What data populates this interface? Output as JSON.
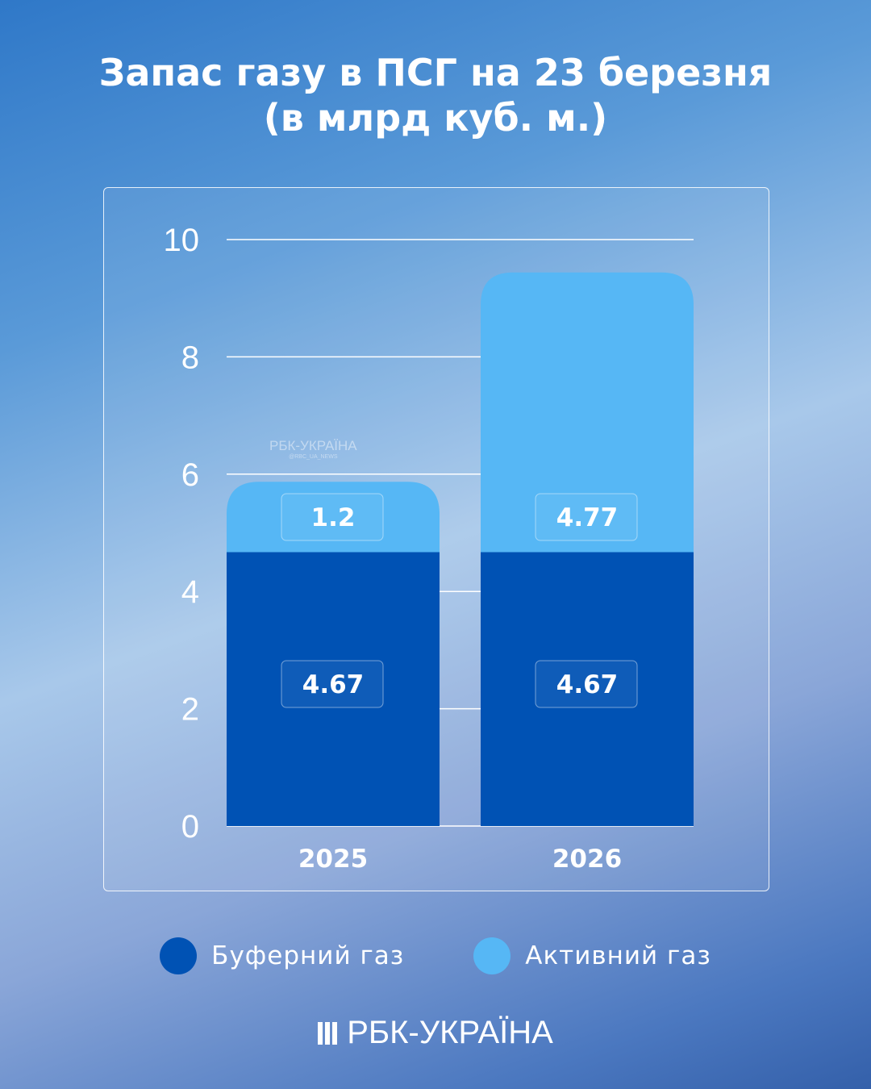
{
  "chart_data": {
    "type": "bar",
    "stacked": true,
    "title": "Запас газу в ПСГ на 23 березня",
    "subtitle": "(в млрд куб. м.)",
    "categories": [
      "2025",
      "2026"
    ],
    "series": [
      {
        "name": "Буферний газ",
        "color": "#0052b4",
        "values": [
          4.67,
          4.67
        ]
      },
      {
        "name": "Активний газ",
        "color": "#56b7f5",
        "values": [
          1.2,
          4.77
        ]
      }
    ],
    "ylim": [
      0,
      10
    ],
    "yticks": [
      "0",
      "2",
      "4",
      "6",
      "8",
      "10"
    ],
    "grid": true,
    "legend_position": "bottom"
  },
  "watermark": {
    "brand": "РБК-УКРАЇНА",
    "handle": "@RBC_UA_NEWS"
  },
  "logo": "РБК-УКРАЇНА"
}
